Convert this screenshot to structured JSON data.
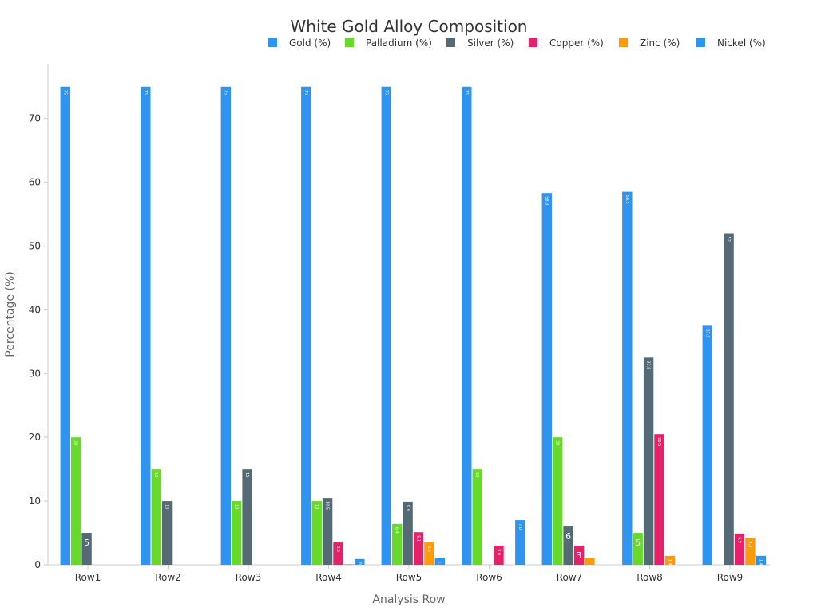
{
  "chart_data": {
    "type": "bar",
    "title": "White Gold Alloy Composition",
    "xlabel": "Analysis Row",
    "ylabel": "Percentage (%)",
    "ylim": [
      0,
      78.6
    ],
    "yticks": [
      0,
      10,
      20,
      30,
      40,
      50,
      60,
      70
    ],
    "legend_position": "top-right",
    "categories": [
      "Row1",
      "Row2",
      "Row3",
      "Row4",
      "Row5",
      "Row6",
      "Row7",
      "Row8",
      "Row9"
    ],
    "series": [
      {
        "name": "Gold (%)",
        "color": "#2f93f0",
        "values": [
          75,
          75,
          75,
          75,
          75,
          75,
          58.3,
          58.5,
          37.5
        ]
      },
      {
        "name": "Palladium (%)",
        "color": "#66d92a",
        "values": [
          20,
          15,
          10,
          10,
          6.4,
          15,
          20,
          5,
          0
        ]
      },
      {
        "name": "Silver (%)",
        "color": "#546a75",
        "values": [
          5,
          10,
          15,
          10.5,
          9.9,
          0,
          6,
          32.5,
          52
        ]
      },
      {
        "name": "Copper (%)",
        "color": "#e3226a",
        "values": [
          0,
          0,
          0,
          3.5,
          5.1,
          3,
          3,
          20.5,
          4.9
        ]
      },
      {
        "name": "Zinc (%)",
        "color": "#fb9a0b",
        "values": [
          0,
          0,
          0,
          0.1,
          3.5,
          0,
          1,
          1.4,
          4.2
        ]
      },
      {
        "name": "Nickel (%)",
        "color": "#2f93f0",
        "values": [
          0,
          0,
          0,
          0.9,
          1.1,
          7,
          0,
          0,
          1.4
        ]
      }
    ],
    "data_labels": [
      [
        "75",
        "20",
        "5",
        "",
        "",
        ""
      ],
      [
        "75",
        "15",
        "10",
        "",
        "",
        ""
      ],
      [
        "75",
        "10",
        "15",
        "",
        "",
        ""
      ],
      [
        "75",
        "10",
        "10.5",
        "3.5",
        "",
        "0.9"
      ],
      [
        "75",
        "6.4",
        "9.9",
        "5.1",
        "3.5",
        "1.1"
      ],
      [
        "75",
        "15",
        "",
        "3.0",
        "",
        "7.0"
      ],
      [
        "58.3",
        "20",
        "6",
        "3",
        "1",
        ""
      ],
      [
        "58.5",
        "5",
        "32.5",
        "20.5",
        "1.4",
        ""
      ],
      [
        "37.5",
        "",
        "52",
        "4.9",
        "4.2",
        "1.4"
      ]
    ]
  }
}
